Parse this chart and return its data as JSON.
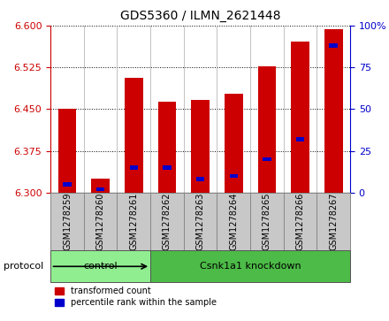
{
  "title": "GDS5360 / ILMN_2621448",
  "samples": [
    "GSM1278259",
    "GSM1278260",
    "GSM1278261",
    "GSM1278262",
    "GSM1278263",
    "GSM1278264",
    "GSM1278265",
    "GSM1278266",
    "GSM1278267"
  ],
  "transformed_counts": [
    6.451,
    6.325,
    6.507,
    6.463,
    6.467,
    6.477,
    6.527,
    6.572,
    6.593
  ],
  "percentile_ranks": [
    5,
    2,
    15,
    15,
    8,
    10,
    20,
    32,
    88
  ],
  "ylim_left": [
    6.3,
    6.6
  ],
  "ylim_right": [
    0,
    100
  ],
  "yticks_left": [
    6.3,
    6.375,
    6.45,
    6.525,
    6.6
  ],
  "yticks_right": [
    0,
    25,
    50,
    75,
    100
  ],
  "bar_color": "#cc0000",
  "percentile_color": "#0000cc",
  "baseline": 6.3,
  "bar_width": 0.55,
  "blue_bar_width": 0.25,
  "groups": [
    {
      "label": "control",
      "indices": [
        0,
        1,
        2
      ],
      "color": "#90ee90"
    },
    {
      "label": "Csnk1a1 knockdown",
      "indices": [
        3,
        4,
        5,
        6,
        7,
        8
      ],
      "color": "#4cbb47"
    }
  ],
  "protocol_label": "protocol",
  "legend_items": [
    {
      "label": "transformed count",
      "color": "#cc0000"
    },
    {
      "label": "percentile rank within the sample",
      "color": "#0000cc"
    }
  ],
  "bg_color": "#ffffff",
  "grid_color": "#000000",
  "tick_box_color": "#c8c8c8",
  "title_fontsize": 10,
  "tick_fontsize": 7,
  "label_fontsize": 8
}
